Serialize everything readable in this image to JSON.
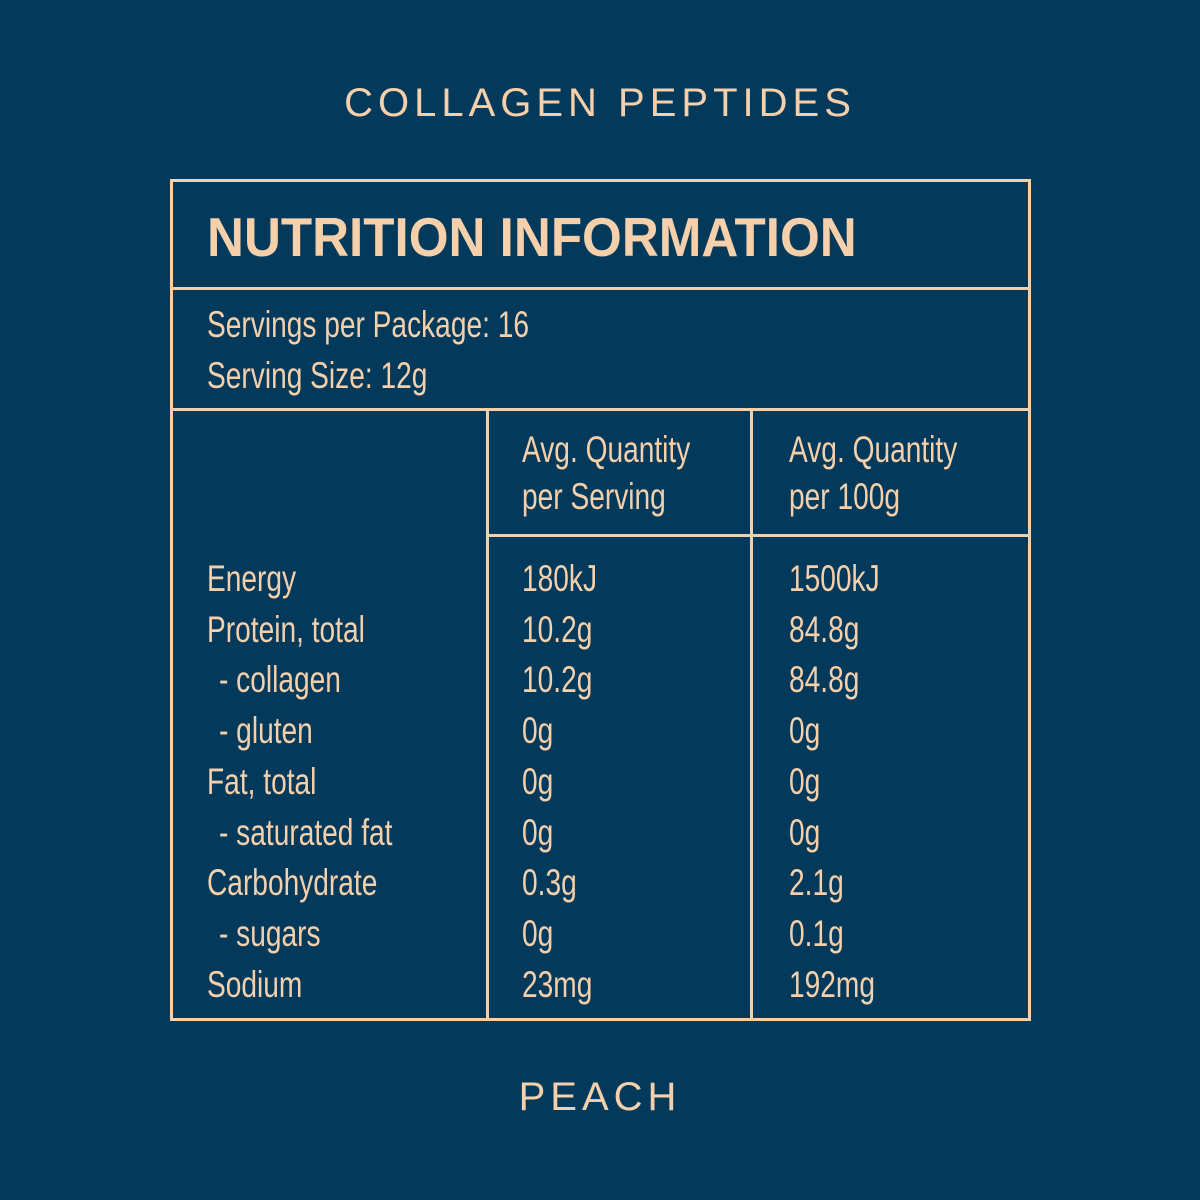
{
  "header": {
    "brand": "COLLAGEN PEPTIDES"
  },
  "table": {
    "title": "NUTRITION INFORMATION",
    "servings_per_package": "Servings per Package: 16",
    "serving_size": "Serving Size: 12g",
    "columns": [
      [
        "Avg. Quantity",
        "per Serving"
      ],
      [
        "Avg. Quantity",
        "per 100g"
      ]
    ],
    "rows": [
      [
        "Energy",
        "180kJ",
        "1500kJ"
      ],
      [
        "Protein, total",
        "10.2g",
        "84.8g"
      ],
      [
        "- collagen",
        "10.2g",
        "84.8g"
      ],
      [
        "- gluten",
        "0g",
        "0g"
      ],
      [
        "Fat, total",
        "0g",
        "0g"
      ],
      [
        "- saturated fat",
        "0g",
        "0g"
      ],
      [
        "Carbohydrate",
        "0.3g",
        "2.1g"
      ],
      [
        "- sugars",
        "0g",
        "0.1g"
      ],
      [
        "Sodium",
        "23mg",
        "192mg"
      ]
    ]
  },
  "footer": {
    "flavor": "PEACH"
  }
}
